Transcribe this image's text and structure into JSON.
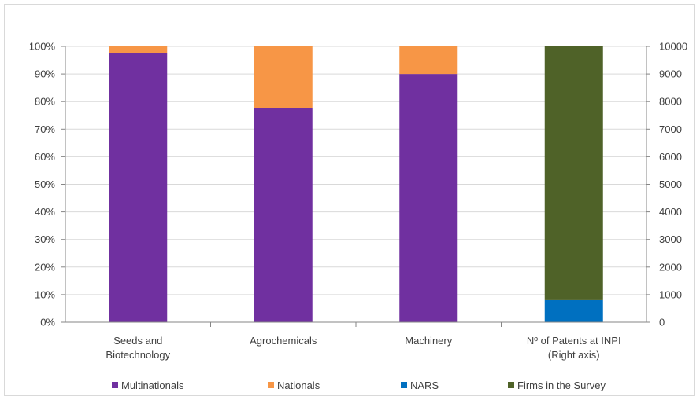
{
  "chart_data": {
    "type": "bar",
    "stacked": true,
    "categories": [
      [
        "Seeds and",
        "Biotechnology"
      ],
      [
        "Agrochemicals"
      ],
      [
        "Machinery"
      ],
      [
        "Nº of Patents at INPI",
        "(Right axis)"
      ]
    ],
    "series": [
      {
        "name": "Multinationals",
        "color": "#7030a0",
        "axis": "left",
        "values": [
          97.5,
          77.5,
          90,
          null
        ]
      },
      {
        "name": "Nationals",
        "color": "#f79646",
        "axis": "left",
        "values": [
          2.5,
          22.5,
          10,
          null
        ]
      },
      {
        "name": "NARS",
        "color": "#0070c0",
        "axis": "right",
        "values": [
          null,
          null,
          null,
          800
        ]
      },
      {
        "name": "Firms in the Survey",
        "color": "#4f6228",
        "axis": "right",
        "values": [
          null,
          null,
          null,
          9200
        ]
      }
    ],
    "left_axis": {
      "ylim": [
        0,
        100
      ],
      "step": 10,
      "tick_suffix": "%"
    },
    "right_axis": {
      "ylim": [
        0,
        10000
      ],
      "step": 1000
    },
    "legend_position": "bottom",
    "grid": true
  }
}
